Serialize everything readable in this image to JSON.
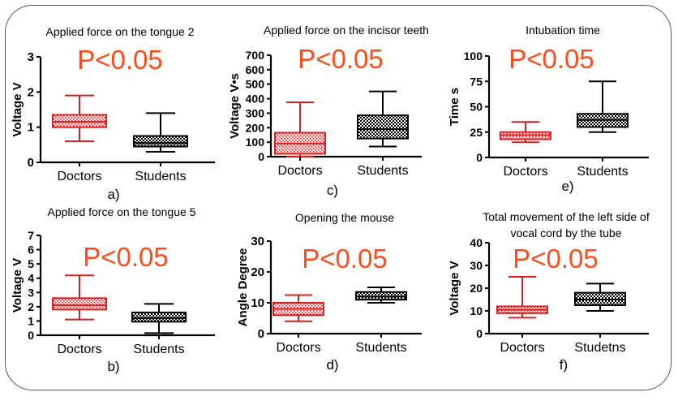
{
  "colors": {
    "group_a": "#d42020",
    "group_b": "#000000",
    "pvalue": "#ff4a1c",
    "frame": "#555555"
  },
  "chart_data": [
    {
      "type": "box",
      "panel_label": "a)",
      "title": "Applied force on the tongue 2",
      "ylabel": "Voltage V",
      "categories": [
        "Doctors",
        "Students"
      ],
      "ylim": [
        0,
        3
      ],
      "yticks": [
        "0",
        "1",
        "2",
        "3"
      ],
      "annotation": "P<0.05",
      "boxes": [
        {
          "min": 0.6,
          "q1": 1.0,
          "median": 1.15,
          "q3": 1.35,
          "max": 1.9
        },
        {
          "min": 0.3,
          "q1": 0.45,
          "median": 0.55,
          "q3": 0.75,
          "max": 1.4
        }
      ]
    },
    {
      "type": "box",
      "panel_label": "b)",
      "title": "Applied force on the tongue 5",
      "ylabel": "Voltage V",
      "categories": [
        "Doctors",
        "Students"
      ],
      "ylim": [
        0,
        7
      ],
      "yticks": [
        "0",
        "1",
        "2",
        "3",
        "4",
        "5",
        "6",
        "7"
      ],
      "annotation": "P<0.05",
      "boxes": [
        {
          "min": 1.1,
          "q1": 1.8,
          "median": 2.1,
          "q3": 2.6,
          "max": 4.2
        },
        {
          "min": 0.15,
          "q1": 0.95,
          "median": 1.2,
          "q3": 1.6,
          "max": 2.2
        }
      ]
    },
    {
      "type": "box",
      "panel_label": "c)",
      "title": "Applied force on the incisor teeth",
      "ylabel": "Voltage V•s",
      "categories": [
        "Doctors",
        "Students"
      ],
      "ylim": [
        0,
        700
      ],
      "yticks": [
        "0",
        "100",
        "200",
        "300",
        "400",
        "500",
        "600",
        "700"
      ],
      "annotation": "P<0.05",
      "boxes": [
        {
          "min": 0,
          "q1": 20,
          "median": 90,
          "q3": 165,
          "max": 375
        },
        {
          "min": 70,
          "q1": 125,
          "median": 190,
          "q3": 285,
          "max": 450
        }
      ]
    },
    {
      "type": "box",
      "panel_label": "d)",
      "title": "Opening the mouse",
      "ylabel": "Angle Degree",
      "categories": [
        "Doctors",
        "Students"
      ],
      "ylim": [
        0,
        30
      ],
      "yticks": [
        "0",
        "10",
        "20",
        "30"
      ],
      "annotation": "P<0.05",
      "boxes": [
        {
          "min": 4,
          "q1": 6,
          "median": 8,
          "q3": 10,
          "max": 12.5
        },
        {
          "min": 10,
          "q1": 11,
          "median": 12,
          "q3": 13.5,
          "max": 15
        }
      ]
    },
    {
      "type": "box",
      "panel_label": "e)",
      "title": "Intubation time",
      "ylabel": "Time s",
      "categories": [
        "Doctors",
        "Students"
      ],
      "ylim": [
        0,
        100
      ],
      "yticks": [
        "0",
        "25",
        "50",
        "75",
        "100"
      ],
      "annotation": "P<0.05",
      "boxes": [
        {
          "min": 15,
          "q1": 18,
          "median": 22,
          "q3": 25,
          "max": 35
        },
        {
          "min": 25,
          "q1": 30,
          "median": 37,
          "q3": 43,
          "max": 75
        }
      ]
    },
    {
      "type": "box",
      "panel_label": "f)",
      "title": [
        "Total movement of the left side of",
        "vocal cord by the tube"
      ],
      "ylabel": "Voltage V",
      "categories": [
        "Doctors",
        "Studetns"
      ],
      "ylim": [
        0,
        40
      ],
      "yticks": [
        "0",
        "10",
        "20",
        "30",
        "40"
      ],
      "annotation": "P<0.05",
      "boxes": [
        {
          "min": 7,
          "q1": 9,
          "median": 10.5,
          "q3": 12,
          "max": 25
        },
        {
          "min": 10,
          "q1": 12.5,
          "median": 15,
          "q3": 18,
          "max": 22
        }
      ]
    }
  ]
}
